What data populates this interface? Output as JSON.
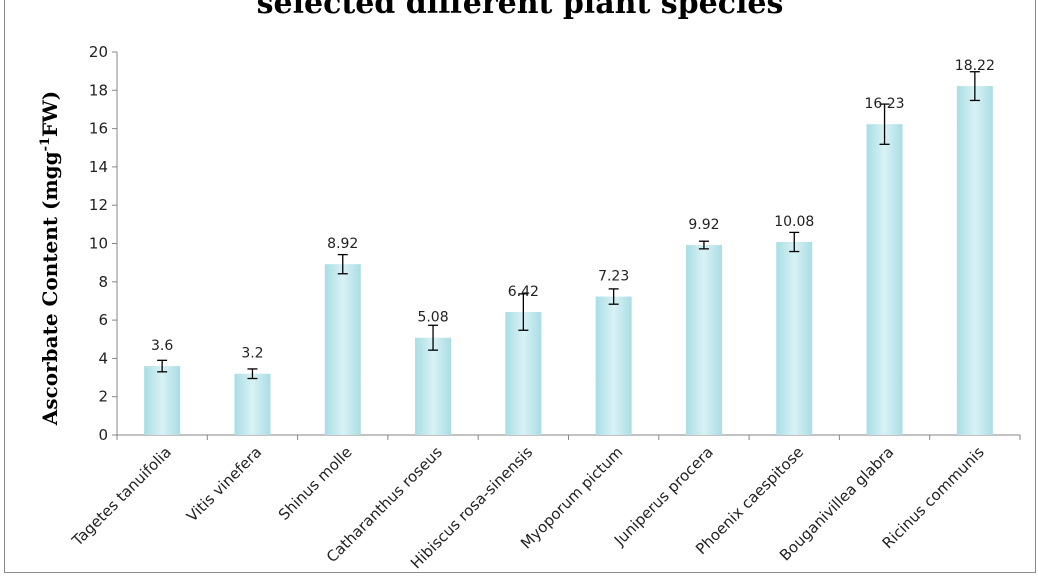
{
  "chart_data": {
    "type": "bar",
    "title": "selected different plant species",
    "ylabel_main": "Ascorbate Content (mgg",
    "ylabel_sup": "-1",
    "ylabel_tail": "FW)",
    "xlabel": "",
    "ylim": [
      0,
      20
    ],
    "yticks": [
      0,
      2,
      4,
      6,
      8,
      10,
      12,
      14,
      16,
      18,
      20
    ],
    "categories": [
      "Tagetes tanuifolia",
      "Vitis vinefera",
      "Shinus molle",
      "Catharanthus roseus",
      "Hibiscus rosa-sinensis",
      "Myoporum pictum",
      "Juniperus procera",
      "Phoenix caespitose",
      "Bouganivillea glabra",
      "Ricinus communis"
    ],
    "values": [
      3.6,
      3.2,
      8.92,
      5.08,
      6.42,
      7.23,
      9.92,
      10.08,
      16.23,
      18.22
    ],
    "value_labels": [
      "3.6",
      "3.2",
      "8.92",
      "5.08",
      "6.42",
      "7.23",
      "9.92",
      "10.08",
      "16.23",
      "18.22"
    ],
    "errors": [
      0.3,
      0.25,
      0.5,
      0.65,
      0.95,
      0.4,
      0.2,
      0.5,
      1.05,
      0.75
    ],
    "grid": false,
    "legend": "none",
    "bar_color": "#a9dde4",
    "bar_highlight": "#d8f2f5"
  }
}
